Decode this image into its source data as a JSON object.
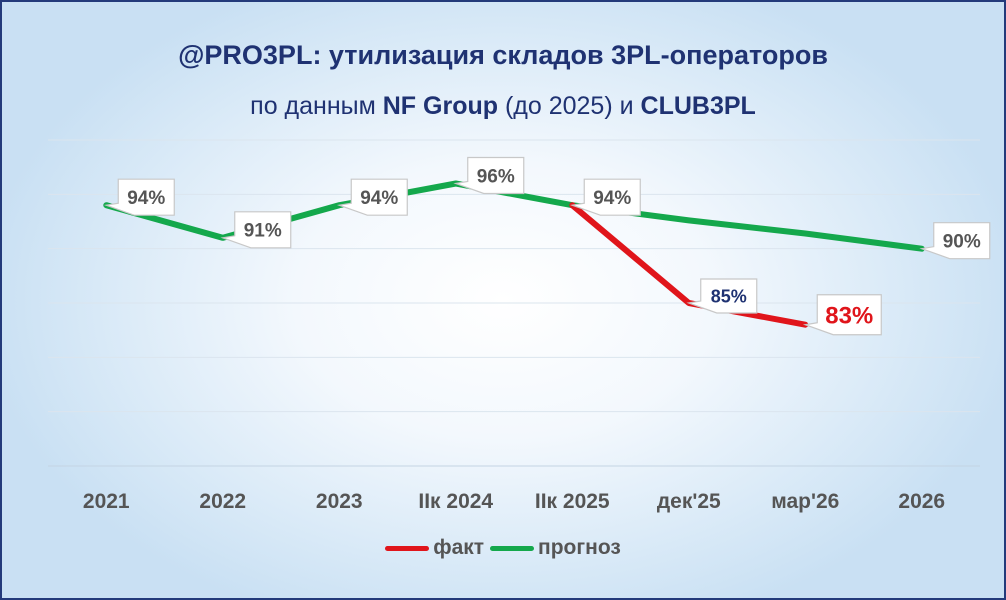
{
  "title_parts": {
    "handle": "@PRO3PL",
    "rest": ": утилизация складов 3PL-операторов"
  },
  "subtitle_parts": {
    "p1": "по данным ",
    "b1": "NF Group",
    "p2": " (до 2025) и ",
    "b2": "CLUB3PL"
  },
  "colors": {
    "fact": "#e0151b",
    "forecast": "#14a84c",
    "title": "#1f3272",
    "label": "#555555",
    "label_fact_dark": "#1f3272"
  },
  "chart_data": {
    "type": "line",
    "categories": [
      "2021",
      "2022",
      "2023",
      "IIк 2024",
      "IIк 2025",
      "дек'25",
      "мар'26",
      "2026"
    ],
    "ylim": [
      70,
      100
    ],
    "grid": true,
    "legend_position": "bottom",
    "series": [
      {
        "name": "факт",
        "color": "#e0151b",
        "values": [
          null,
          null,
          null,
          null,
          94,
          85,
          83,
          null
        ],
        "labels": [
          null,
          null,
          null,
          null,
          null,
          "85%",
          "83%",
          null
        ]
      },
      {
        "name": "прогноз",
        "color": "#14a84c",
        "values": [
          94,
          91,
          94,
          96,
          94,
          92.6,
          91.4,
          90
        ],
        "labels": [
          "94%",
          "91%",
          "94%",
          "96%",
          "94%",
          null,
          null,
          "90%"
        ]
      }
    ]
  }
}
